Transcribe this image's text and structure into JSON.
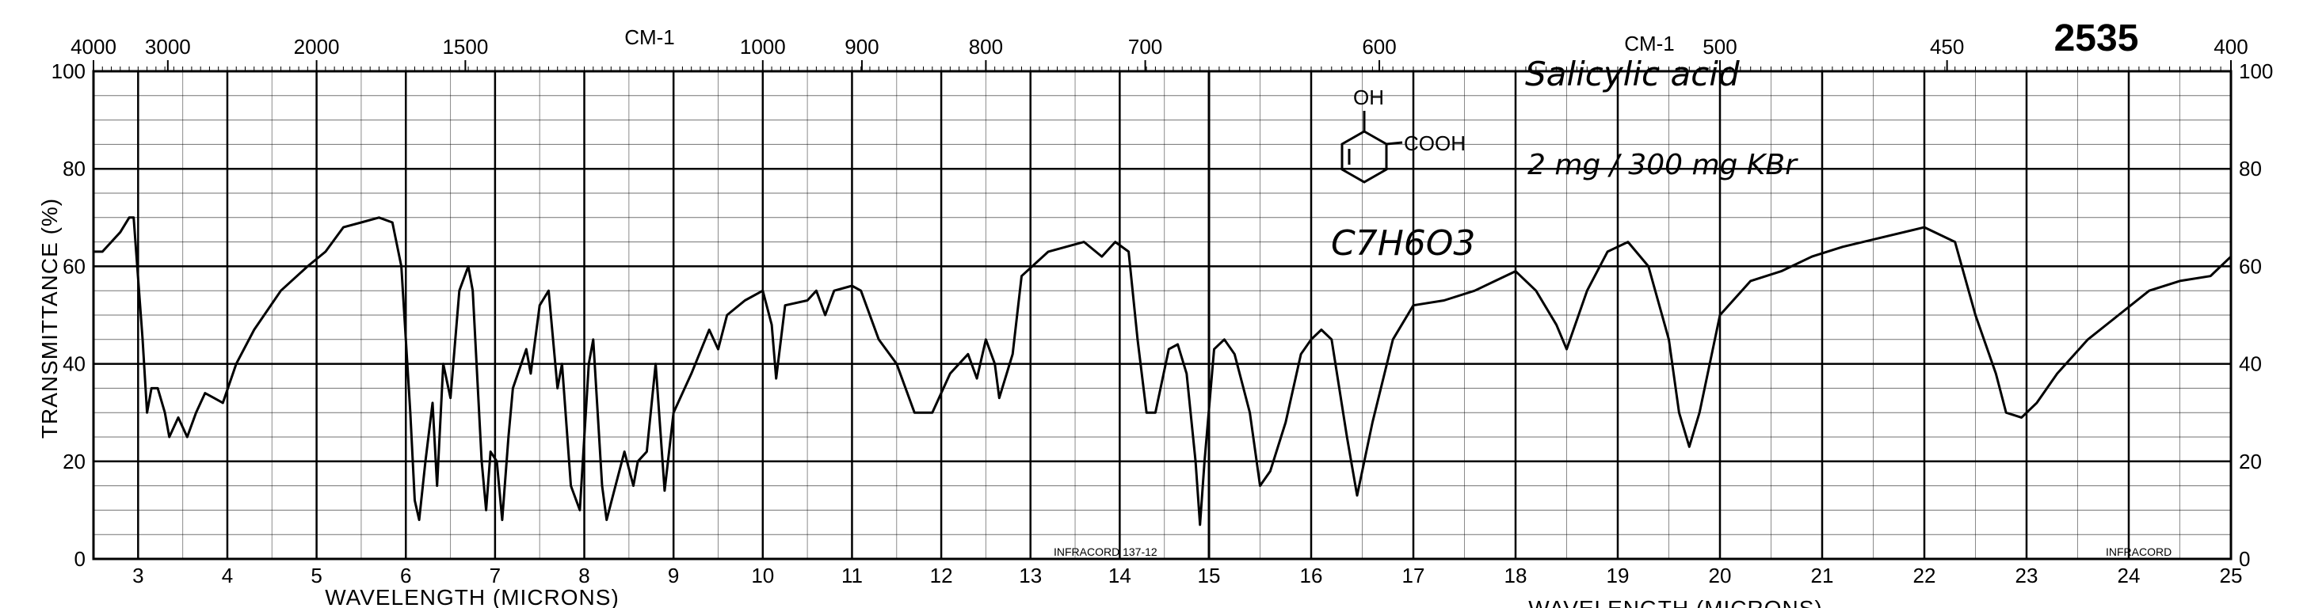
{
  "chart_data": {
    "type": "line",
    "chart_number": "2535",
    "compound_name": "Salicylic acid",
    "sample_prep": "2 mg / 300 mg KBr",
    "formula": "C7H6O3",
    "structure_labels": {
      "oh": "OH",
      "cooh": "COOH"
    },
    "xlabel": "WAVELENGTH (MICRONS)",
    "ylabel": "TRANSMITTANCE (%)",
    "top_axis_unit": "CM-1",
    "top_axis_unit_right": "CM-1",
    "infracord_left": "INFRACORD 137-12",
    "infracord_right": "INFRACORD",
    "xlim_micron": [
      2.5,
      25
    ],
    "ylim": [
      0,
      100
    ],
    "y_ticks": [
      0,
      20,
      40,
      60,
      80,
      100
    ],
    "bottom_ticks_left": [
      3,
      4,
      5,
      6,
      7,
      8,
      9,
      10,
      11,
      12,
      13,
      14
    ],
    "bottom_ticks_right": [
      15,
      16,
      17,
      18,
      19,
      20,
      21,
      22,
      23,
      24,
      25
    ],
    "top_ticks_left": [
      {
        "label": "4000",
        "micron": 2.5
      },
      {
        "label": "3000",
        "micron": 3.333
      },
      {
        "label": "2000",
        "micron": 5.0
      },
      {
        "label": "1500",
        "micron": 6.667
      },
      {
        "label": "1000",
        "micron": 10.0
      },
      {
        "label": "900",
        "micron": 11.111
      },
      {
        "label": "800",
        "micron": 12.5
      },
      {
        "label": "700",
        "micron": 14.286
      }
    ],
    "top_ticks_right": [
      {
        "label": "600",
        "micron": 16.667
      },
      {
        "label": "500",
        "micron": 20.0
      },
      {
        "label": "450",
        "micron": 22.222
      },
      {
        "label": "400",
        "micron": 25.0
      }
    ],
    "grid": true,
    "series": [
      {
        "points": [
          [
            2.5,
            63
          ],
          [
            2.6,
            63
          ],
          [
            2.7,
            65
          ],
          [
            2.8,
            67
          ],
          [
            2.9,
            70
          ],
          [
            2.95,
            70
          ],
          [
            3.05,
            45
          ],
          [
            3.1,
            30
          ],
          [
            3.15,
            35
          ],
          [
            3.22,
            35
          ],
          [
            3.3,
            30
          ],
          [
            3.35,
            25
          ],
          [
            3.45,
            29
          ],
          [
            3.55,
            25
          ],
          [
            3.65,
            30
          ],
          [
            3.75,
            34
          ],
          [
            3.85,
            33
          ],
          [
            3.95,
            32
          ],
          [
            4.1,
            40
          ],
          [
            4.3,
            47
          ],
          [
            4.6,
            55
          ],
          [
            4.9,
            60
          ],
          [
            5.1,
            63
          ],
          [
            5.3,
            68
          ],
          [
            5.5,
            69
          ],
          [
            5.7,
            70
          ],
          [
            5.85,
            69
          ],
          [
            5.95,
            60
          ],
          [
            6.05,
            30
          ],
          [
            6.1,
            12
          ],
          [
            6.15,
            8
          ],
          [
            6.22,
            20
          ],
          [
            6.3,
            32
          ],
          [
            6.35,
            15
          ],
          [
            6.42,
            40
          ],
          [
            6.5,
            33
          ],
          [
            6.6,
            55
          ],
          [
            6.7,
            60
          ],
          [
            6.75,
            55
          ],
          [
            6.85,
            20
          ],
          [
            6.9,
            10
          ],
          [
            6.95,
            22
          ],
          [
            7.02,
            20
          ],
          [
            7.08,
            8
          ],
          [
            7.15,
            25
          ],
          [
            7.2,
            35
          ],
          [
            7.35,
            43
          ],
          [
            7.4,
            38
          ],
          [
            7.5,
            52
          ],
          [
            7.6,
            55
          ],
          [
            7.7,
            35
          ],
          [
            7.75,
            40
          ],
          [
            7.85,
            15
          ],
          [
            7.95,
            10
          ],
          [
            8.05,
            40
          ],
          [
            8.1,
            45
          ],
          [
            8.2,
            15
          ],
          [
            8.25,
            8
          ],
          [
            8.35,
            15
          ],
          [
            8.45,
            22
          ],
          [
            8.55,
            15
          ],
          [
            8.6,
            20
          ],
          [
            8.7,
            22
          ],
          [
            8.8,
            40
          ],
          [
            8.9,
            14
          ],
          [
            9.0,
            30
          ],
          [
            9.2,
            38
          ],
          [
            9.4,
            47
          ],
          [
            9.5,
            43
          ],
          [
            9.6,
            50
          ],
          [
            9.8,
            53
          ],
          [
            10.0,
            55
          ],
          [
            10.1,
            48
          ],
          [
            10.15,
            37
          ],
          [
            10.25,
            52
          ],
          [
            10.5,
            53
          ],
          [
            10.6,
            55
          ],
          [
            10.7,
            50
          ],
          [
            10.8,
            55
          ],
          [
            11.0,
            56
          ],
          [
            11.1,
            55
          ],
          [
            11.3,
            45
          ],
          [
            11.5,
            40
          ],
          [
            11.7,
            30
          ],
          [
            11.9,
            30
          ],
          [
            12.1,
            38
          ],
          [
            12.3,
            42
          ],
          [
            12.4,
            37
          ],
          [
            12.5,
            45
          ],
          [
            12.6,
            40
          ],
          [
            12.65,
            33
          ],
          [
            12.8,
            42
          ],
          [
            12.9,
            58
          ],
          [
            13.2,
            63
          ],
          [
            13.6,
            65
          ],
          [
            13.8,
            62
          ],
          [
            13.95,
            65
          ],
          [
            14.1,
            63
          ],
          [
            14.2,
            45
          ],
          [
            14.3,
            30
          ],
          [
            14.4,
            30
          ],
          [
            14.55,
            43
          ],
          [
            14.65,
            44
          ],
          [
            14.75,
            38
          ],
          [
            14.85,
            20
          ],
          [
            14.9,
            7
          ],
          [
            14.95,
            20
          ],
          [
            15.05,
            43
          ],
          [
            15.15,
            45
          ],
          [
            15.25,
            42
          ],
          [
            15.4,
            30
          ],
          [
            15.5,
            15
          ],
          [
            15.6,
            18
          ],
          [
            15.75,
            28
          ],
          [
            15.9,
            42
          ],
          [
            16.0,
            45
          ],
          [
            16.1,
            47
          ],
          [
            16.2,
            45
          ],
          [
            16.35,
            25
          ],
          [
            16.45,
            13
          ],
          [
            16.6,
            28
          ],
          [
            16.8,
            45
          ],
          [
            17.0,
            52
          ],
          [
            17.3,
            53
          ],
          [
            17.6,
            55
          ],
          [
            17.8,
            57
          ],
          [
            18.0,
            59
          ],
          [
            18.2,
            55
          ],
          [
            18.4,
            48
          ],
          [
            18.5,
            43
          ],
          [
            18.7,
            55
          ],
          [
            18.9,
            63
          ],
          [
            19.1,
            65
          ],
          [
            19.3,
            60
          ],
          [
            19.5,
            45
          ],
          [
            19.6,
            30
          ],
          [
            19.7,
            23
          ],
          [
            19.8,
            30
          ],
          [
            20.0,
            50
          ],
          [
            20.3,
            57
          ],
          [
            20.6,
            59
          ],
          [
            20.9,
            62
          ],
          [
            21.2,
            64
          ],
          [
            21.6,
            66
          ],
          [
            22.0,
            68
          ],
          [
            22.3,
            65
          ],
          [
            22.5,
            50
          ],
          [
            22.7,
            38
          ],
          [
            22.8,
            30
          ],
          [
            22.95,
            29
          ],
          [
            23.1,
            32
          ],
          [
            23.3,
            38
          ],
          [
            23.6,
            45
          ],
          [
            23.9,
            50
          ],
          [
            24.2,
            55
          ],
          [
            24.5,
            57
          ],
          [
            24.8,
            58
          ],
          [
            25.0,
            62
          ]
        ]
      }
    ]
  }
}
